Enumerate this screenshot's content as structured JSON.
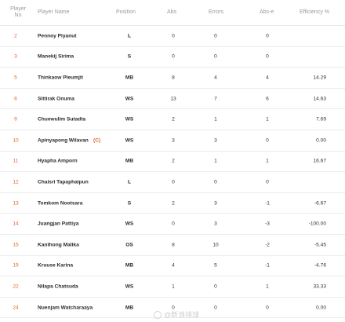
{
  "headers": {
    "player_no_line1": "Player",
    "player_no_line2": "No",
    "player_name": "Player Name",
    "position": "Position",
    "abs": "Abs",
    "errors": "Errors",
    "abs_e": "Abs-e",
    "efficiency": "Efficiency %"
  },
  "colors": {
    "accent": "#e8622c"
  },
  "rows": [
    {
      "no": "2",
      "name": "Pennoy Piyanut",
      "captain": "",
      "position": "L",
      "abs": "0",
      "errors": "0",
      "abs_e": "0",
      "efficiency": ""
    },
    {
      "no": "3",
      "name": "Manekij Sirima",
      "captain": "",
      "position": "S",
      "abs": "0",
      "errors": "0",
      "abs_e": "0",
      "efficiency": ""
    },
    {
      "no": "5",
      "name": "Thinkaow Pleumjit",
      "captain": "",
      "position": "MB",
      "abs": "8",
      "errors": "4",
      "abs_e": "4",
      "efficiency": "14.29"
    },
    {
      "no": "6",
      "name": "Sittirak Onuma",
      "captain": "",
      "position": "WS",
      "abs": "13",
      "errors": "7",
      "abs_e": "6",
      "efficiency": "14.63"
    },
    {
      "no": "9",
      "name": "Chuewulim Sutadta",
      "captain": "",
      "position": "WS",
      "abs": "2",
      "errors": "1",
      "abs_e": "1",
      "efficiency": "7.69"
    },
    {
      "no": "10",
      "name": "Apinyapong Wilavan",
      "captain": "(C)",
      "position": "WS",
      "abs": "3",
      "errors": "3",
      "abs_e": "0",
      "efficiency": "0.00"
    },
    {
      "no": "11",
      "name": "Hyapha Amporn",
      "captain": "",
      "position": "MB",
      "abs": "2",
      "errors": "1",
      "abs_e": "1",
      "efficiency": "16.67"
    },
    {
      "no": "12",
      "name": "Chaisri Tapaphaipun",
      "captain": "",
      "position": "L",
      "abs": "0",
      "errors": "0",
      "abs_e": "0",
      "efficiency": ""
    },
    {
      "no": "13",
      "name": "Tomkom Nootsara",
      "captain": "",
      "position": "S",
      "abs": "2",
      "errors": "3",
      "abs_e": "-1",
      "efficiency": "-6.67"
    },
    {
      "no": "14",
      "name": "Juangjan Pattiya",
      "captain": "",
      "position": "WS",
      "abs": "0",
      "errors": "3",
      "abs_e": "-3",
      "efficiency": "-100.00"
    },
    {
      "no": "15",
      "name": "Kanthong Malika",
      "captain": "",
      "position": "OS",
      "abs": "8",
      "errors": "10",
      "abs_e": "-2",
      "efficiency": "-5.45"
    },
    {
      "no": "19",
      "name": "Kruuse Karina",
      "captain": "",
      "position": "MB",
      "abs": "4",
      "errors": "5",
      "abs_e": "-1",
      "efficiency": "-4.76"
    },
    {
      "no": "22",
      "name": "Nilapa Chatsuda",
      "captain": "",
      "position": "WS",
      "abs": "1",
      "errors": "0",
      "abs_e": "1",
      "efficiency": "33.33"
    },
    {
      "no": "24",
      "name": "Nuenjam Watcharaaya",
      "captain": "",
      "position": "MB",
      "abs": "0",
      "errors": "0",
      "abs_e": "0",
      "efficiency": "0.00"
    }
  ],
  "watermark": {
    "text": "@新浪排球"
  }
}
